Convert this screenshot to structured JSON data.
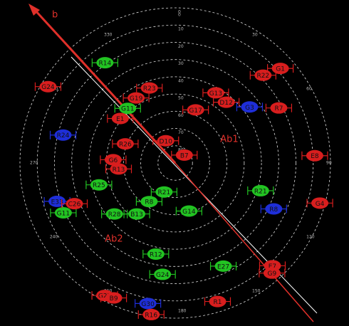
{
  "chart_data": {
    "type": "skyplot",
    "annotations": [
      "b",
      "Ab1",
      "Ab2"
    ],
    "rlim": [
      90,
      0
    ],
    "rticks": [
      0,
      10,
      20,
      30,
      40,
      50,
      60,
      70,
      80
    ],
    "azticks": [
      0,
      30,
      60,
      90,
      120,
      150,
      180,
      210,
      240,
      270,
      300,
      330
    ],
    "grid": true,
    "satellites": [
      {
        "name": "R14",
        "color": "#22c322",
        "azimuth": 325,
        "elevation": 19
      },
      {
        "name": "G24",
        "color": "#d81e1e",
        "azimuth": 301,
        "elevation": 4
      },
      {
        "name": "G19",
        "color": "#d81e1e",
        "azimuth": 329,
        "elevation": 46
      },
      {
        "name": "R23",
        "color": "#d81e1e",
        "azimuth": 341,
        "elevation": 44
      },
      {
        "name": "G11",
        "color": "#22c322",
        "azimuth": 319,
        "elevation": 48
      },
      {
        "name": "E1",
        "color": "#d81e1e",
        "azimuth": 309,
        "elevation": 49
      },
      {
        "name": "R24",
        "color": "#1e2ed8",
        "azimuth": 284,
        "elevation": 23
      },
      {
        "name": "R26",
        "color": "#d81e1e",
        "azimuth": 291,
        "elevation": 59
      },
      {
        "name": "G6",
        "color": "#d81e1e",
        "azimuth": 273,
        "elevation": 54
      },
      {
        "name": "R13",
        "color": "#d81e1e",
        "azimuth": 264,
        "elevation": 57
      },
      {
        "name": "D10",
        "color": "#d81e1e",
        "azimuth": 337,
        "elevation": 76
      },
      {
        "name": "B7",
        "color": "#d81e1e",
        "azimuth": 49,
        "elevation": 83
      },
      {
        "name": "R22",
        "color": "#d81e1e",
        "azimuth": 45,
        "elevation": 18
      },
      {
        "name": "G1",
        "color": "#d81e1e",
        "azimuth": 48,
        "elevation": 8
      },
      {
        "name": "G13",
        "color": "#d81e1e",
        "azimuth": 30,
        "elevation": 43
      },
      {
        "name": "D12",
        "color": "#d81e1e",
        "azimuth": 40,
        "elevation": 44
      },
      {
        "name": "G3",
        "color": "#1e2ed8",
        "azimuth": 53,
        "elevation": 36
      },
      {
        "name": "R7",
        "color": "#d81e1e",
        "azimuth": 62,
        "elevation": 22
      },
      {
        "name": "G17",
        "color": "#d81e1e",
        "azimuth": 21,
        "elevation": 57
      },
      {
        "name": "E8",
        "color": "#d81e1e",
        "azimuth": 87,
        "elevation": 9
      },
      {
        "name": "R25",
        "color": "#22c322",
        "azimuth": 254,
        "elevation": 44
      },
      {
        "name": "R21",
        "color": "#22c322",
        "azimuth": 201,
        "elevation": 72
      },
      {
        "name": "R8",
        "color": "#22c322",
        "azimuth": 214,
        "elevation": 63
      },
      {
        "name": "E33",
        "color": "#1e2ed8",
        "azimuth": 252,
        "elevation": 18
      },
      {
        "name": "G11",
        "color": "#22c322",
        "azimuth": 246,
        "elevation": 19
      },
      {
        "name": "C26",
        "color": "#d81e1e",
        "azimuth": 248,
        "elevation": 27
      },
      {
        "name": "R28",
        "color": "#22c322",
        "azimuth": 230,
        "elevation": 44
      },
      {
        "name": "B13",
        "color": "#22c322",
        "azimuth": 217,
        "elevation": 53
      },
      {
        "name": "G14",
        "color": "#22c322",
        "azimuth": 164,
        "elevation": 61
      },
      {
        "name": "R21",
        "color": "#22c322",
        "azimuth": 108,
        "elevation": 38
      },
      {
        "name": "R8",
        "color": "#1e2ed8",
        "azimuth": 115,
        "elevation": 27
      },
      {
        "name": "G4",
        "color": "#d81e1e",
        "azimuth": 105.5,
        "elevation": 3
      },
      {
        "name": "R12",
        "color": "#22c322",
        "azimuth": 192,
        "elevation": 36
      },
      {
        "name": "G24",
        "color": "#22c322",
        "azimuth": 186.5,
        "elevation": 25
      },
      {
        "name": "E27",
        "color": "#22c322",
        "azimuth": 155,
        "elevation": 24
      },
      {
        "name": "E7",
        "color": "#d81e1e",
        "azimuth": 136.6,
        "elevation": 8
      },
      {
        "name": "G9",
        "color": "#d81e1e",
        "azimuth": 138.7,
        "elevation": 5
      },
      {
        "name": "G27",
        "color": "#d81e1e",
        "azimuth": 208,
        "elevation": 3
      },
      {
        "name": "B9",
        "color": "#d81e1e",
        "azimuth": 204.5,
        "elevation": 4
      },
      {
        "name": "G30",
        "color": "#1e2ed8",
        "azimuth": 191,
        "elevation": 7
      },
      {
        "name": "R16",
        "color": "#d81e1e",
        "azimuth": 189,
        "elevation": 1
      },
      {
        "name": "R1",
        "color": "#d81e1e",
        "azimuth": 163,
        "elevation": 6
      }
    ]
  }
}
